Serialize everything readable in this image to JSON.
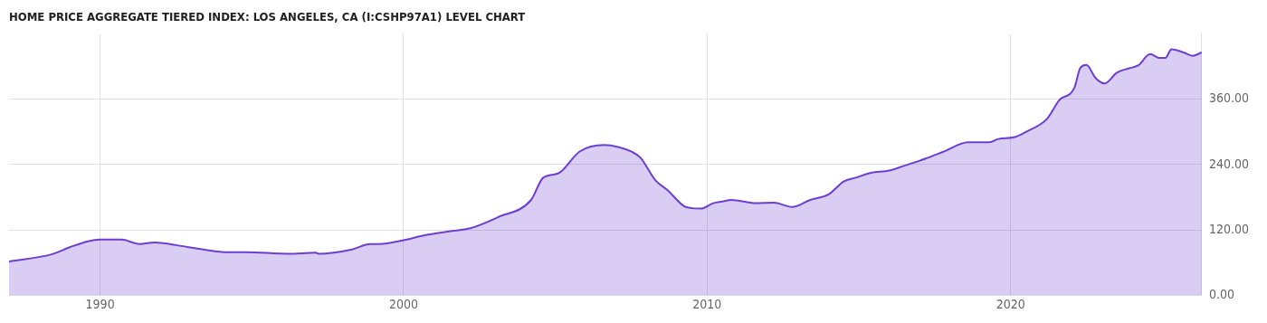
{
  "chart_data": {
    "type": "area",
    "title": "HOME PRICE AGGREGATE TIERED INDEX: LOS ANGELES, CA (I:CSHP97A1) LEVEL CHART",
    "x": [
      1987.0,
      1988.4,
      1989.0,
      1989.6,
      1990.0,
      1990.7,
      1991.3,
      1991.8,
      1992.5,
      1993.4,
      1994.2,
      1994.8,
      1996.2,
      1997.1,
      1997.2,
      1998.3,
      1998.9,
      1999.2,
      2000.0,
      2000.7,
      2001.6,
      2002.2,
      2003.1,
      2004.2,
      2004.6,
      2005.1,
      2005.8,
      2006.6,
      2007.1,
      2007.5,
      2007.8,
      2008.3,
      2008.7,
      2009.3,
      2009.8,
      2010.2,
      2010.5,
      2010.8,
      2011.6,
      2012.2,
      2012.8,
      2013.4,
      2014.0,
      2014.5,
      2014.9,
      2015.4,
      2016.0,
      2016.5,
      2017.2,
      2017.8,
      2018.6,
      2019.3,
      2019.6,
      2020.1,
      2020.5,
      2021.2,
      2021.6,
      2022.1,
      2022.3,
      2022.5,
      2022.8,
      2023.1,
      2023.5,
      2023.9,
      2024.2,
      2024.6,
      2024.9,
      2025.1,
      2025.3,
      2025.7,
      2026.0,
      2026.3
    ],
    "series": [
      {
        "color": "#6c3fd1",
        "values": [
          62,
          75,
          88,
          99,
          102,
          102,
          94,
          97,
          92,
          84,
          79,
          79,
          76,
          78,
          76,
          84,
          94,
          94,
          101,
          110,
          118,
          123,
          143,
          175,
          216,
          224,
          264,
          276,
          272,
          264,
          253,
          211,
          193,
          162,
          159,
          169,
          172,
          175,
          169,
          170,
          162,
          175,
          185,
          209,
          216,
          225,
          229,
          238,
          251,
          264,
          281,
          281,
          287,
          290,
          300,
          324,
          358,
          381,
          418,
          423,
          399,
          389,
          409,
          417,
          422,
          443,
          436,
          436,
          452,
          446,
          440,
          446
        ]
      }
    ],
    "xlim": [
      1987.0,
      2026.3
    ],
    "xticks": [
      1990,
      2000,
      2010,
      2020
    ],
    "ylim": [
      0,
      480
    ],
    "yticks": [
      {
        "value": 0,
        "label": "0.00"
      },
      {
        "value": 120,
        "label": "120.00"
      },
      {
        "value": 240,
        "label": "240.00"
      },
      {
        "value": 360,
        "label": "360.00"
      }
    ],
    "grid": true,
    "legend": false,
    "marker": "none",
    "line_style": "solid"
  }
}
